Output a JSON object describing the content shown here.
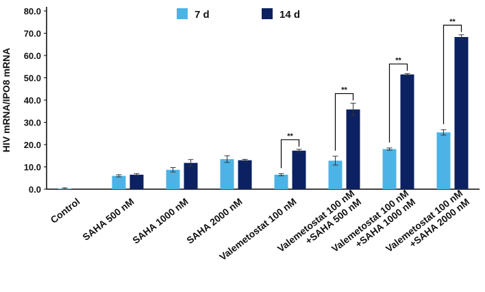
{
  "chart_data": {
    "type": "bar",
    "y_label": "HIV mRNA/IPO8 mRNA",
    "categories": [
      [
        "Control"
      ],
      [
        "SAHA 500 nM"
      ],
      [
        "SAHA 1000 nM"
      ],
      [
        "SAHA 2000 nM"
      ],
      [
        "Valemetostat 100 nM"
      ],
      [
        "Valemetostat 100 nM",
        "+SAHA 500 nM"
      ],
      [
        "Valemetostat 100 nM",
        "+SAHA 1000 nM"
      ],
      [
        "Valemetostat 100 nM",
        "+SAHA 2000 nM"
      ]
    ],
    "series": [
      {
        "name": "7 d",
        "color": "#4db3e6",
        "values": [
          0.3,
          6.0,
          8.7,
          13.5,
          6.5,
          12.8,
          18.0,
          25.5
        ],
        "errors": [
          0.3,
          0.5,
          1.0,
          1.5,
          0.5,
          2.0,
          0.5,
          1.2
        ]
      },
      {
        "name": "14 d",
        "color": "#0b2161",
        "values": [
          null,
          6.5,
          11.8,
          13.0,
          17.3,
          35.8,
          51.5,
          68.3
        ],
        "errors": [
          null,
          0.5,
          1.5,
          0.4,
          0.6,
          2.8,
          0.4,
          1.0
        ]
      }
    ],
    "significance": [
      null,
      null,
      null,
      null,
      "**",
      "**",
      "**",
      "**"
    ],
    "ylim": [
      0,
      80
    ],
    "yticks": [
      {
        "value": 0,
        "label": "0.0"
      },
      {
        "value": 10,
        "label": "10.0"
      },
      {
        "value": 20,
        "label": "20.0"
      },
      {
        "value": 30,
        "label": "30.0"
      },
      {
        "value": 40,
        "label": "40.0"
      },
      {
        "value": 50,
        "label": "50.0"
      },
      {
        "value": 60,
        "label": "60.0"
      },
      {
        "value": 70,
        "label": "70.0"
      },
      {
        "value": 80,
        "label": "80.0"
      }
    ],
    "grid": false
  }
}
